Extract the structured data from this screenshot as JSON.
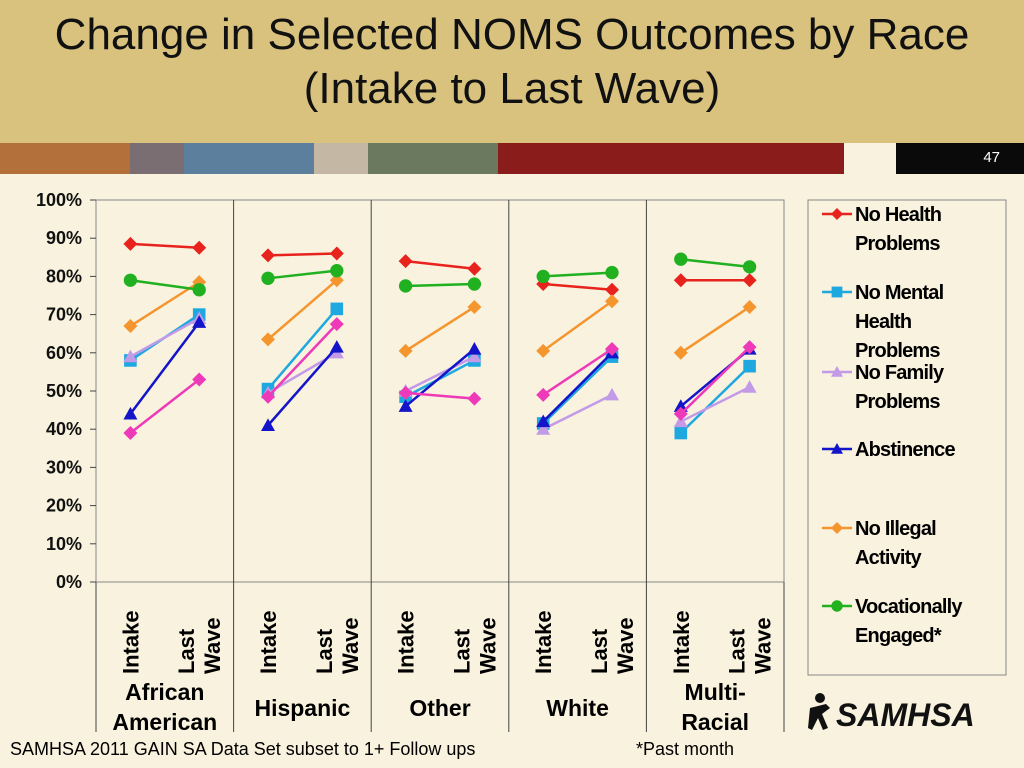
{
  "slide": {
    "title": "Change in Selected NOMS Outcomes by Race  (Intake to Last Wave)",
    "slide_number": "47",
    "footer_source": "SAMHSA 2011 GAIN SA Data Set subset to 1+ Follow ups",
    "footer_note": "*Past month",
    "logo_text": "SAMHSA",
    "band_colors": [
      "#b4703a",
      "#7a6e72",
      "#5c7f9e",
      "#c4b8a4",
      "#6b7a5e",
      "#8a1c1c",
      "#f8f2de",
      "#0a0a0a"
    ]
  },
  "chart_data": {
    "type": "line",
    "categories": [
      "Intake",
      "Last Wave"
    ],
    "groups": [
      {
        "label_lines": [
          "African",
          "American"
        ]
      },
      {
        "label_lines": [
          "Hispanic"
        ]
      },
      {
        "label_lines": [
          "Other"
        ]
      },
      {
        "label_lines": [
          "White"
        ]
      },
      {
        "label_lines": [
          "Multi-",
          "Racial"
        ]
      }
    ],
    "y_ticks": [
      "0%",
      "10%",
      "20%",
      "30%",
      "40%",
      "50%",
      "60%",
      "70%",
      "80%",
      "90%",
      "100%"
    ],
    "ylim": [
      0,
      100
    ],
    "legend_position": "right",
    "series": [
      {
        "name_lines": [
          "No Health",
          "Problems"
        ],
        "color": "#e8231e",
        "marker": "diamond",
        "values": [
          [
            88.5,
            87.5
          ],
          [
            85.5,
            86
          ],
          [
            84,
            82
          ],
          [
            78,
            76.5
          ],
          [
            79,
            79
          ]
        ]
      },
      {
        "name_lines": [
          "No Mental",
          "Health",
          "Problems"
        ],
        "color": "#1ea8e0",
        "marker": "square",
        "values": [
          [
            58,
            70
          ],
          [
            50.5,
            71.5
          ],
          [
            48.5,
            58
          ],
          [
            41.5,
            59
          ],
          [
            39,
            56.5
          ]
        ]
      },
      {
        "name_lines": [
          "No Family",
          "Problems"
        ],
        "color": "#c39ae8",
        "marker": "triangle",
        "values": [
          [
            59,
            69
          ],
          [
            49.5,
            60
          ],
          [
            50,
            59
          ],
          [
            40,
            49
          ],
          [
            42,
            51
          ]
        ]
      },
      {
        "name_lines": [
          "Abstinence"
        ],
        "color": "#1414c8",
        "marker": "triangle",
        "values": [
          [
            44,
            68
          ],
          [
            41,
            61.5
          ],
          [
            46,
            61
          ],
          [
            42,
            60
          ],
          [
            46,
            61
          ]
        ]
      },
      {
        "name_lines": [
          "No Illegal",
          "Activity"
        ],
        "color": "#f5952e",
        "marker": "diamond",
        "values": [
          [
            67,
            78.5
          ],
          [
            63.5,
            79
          ],
          [
            60.5,
            72
          ],
          [
            60.5,
            73.5
          ],
          [
            60,
            72
          ]
        ]
      },
      {
        "name_lines": [
          "Vocationally",
          "Engaged*"
        ],
        "color": "#20b020",
        "marker": "circle",
        "values": [
          [
            79,
            76.5
          ],
          [
            79.5,
            81.5
          ],
          [
            77.5,
            78
          ],
          [
            80,
            81
          ],
          [
            84.5,
            82.5
          ]
        ]
      },
      {
        "name_lines": [],
        "color": "#ee3ab8",
        "marker": "diamond",
        "values": [
          [
            39,
            53
          ],
          [
            48.5,
            67.5
          ],
          [
            49.5,
            48
          ],
          [
            49,
            61
          ],
          [
            44,
            61.5
          ]
        ]
      }
    ]
  }
}
